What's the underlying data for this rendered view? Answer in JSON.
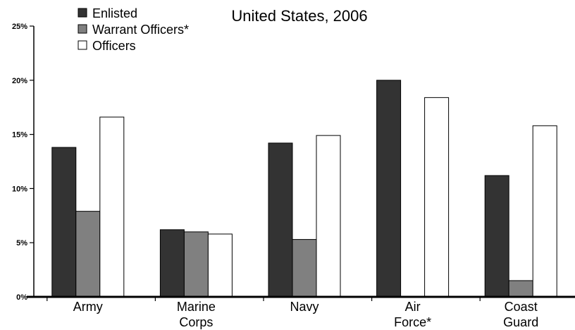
{
  "chart_data": {
    "type": "bar",
    "subtitle": "United States, 2006",
    "categories": [
      [
        "Army"
      ],
      [
        "Marine",
        "Corps"
      ],
      [
        "Navy"
      ],
      [
        "Air",
        "Force*"
      ],
      [
        "Coast",
        "Guard"
      ]
    ],
    "series": [
      {
        "name": "Enlisted",
        "color": "#333333",
        "values": [
          13.8,
          6.2,
          14.2,
          20.0,
          11.2
        ]
      },
      {
        "name": "Warrant Officers*",
        "color": "#808080",
        "values": [
          7.9,
          6.0,
          5.3,
          null,
          1.5
        ]
      },
      {
        "name": "Officers",
        "color": "#ffffff",
        "values": [
          16.6,
          5.8,
          14.9,
          18.4,
          15.8
        ]
      }
    ],
    "y_ticks": [
      "0%",
      "5%",
      "10%",
      "15%",
      "20%",
      "25%"
    ],
    "ylim": [
      0,
      25
    ],
    "legend_position": "top-left",
    "grid": false
  }
}
